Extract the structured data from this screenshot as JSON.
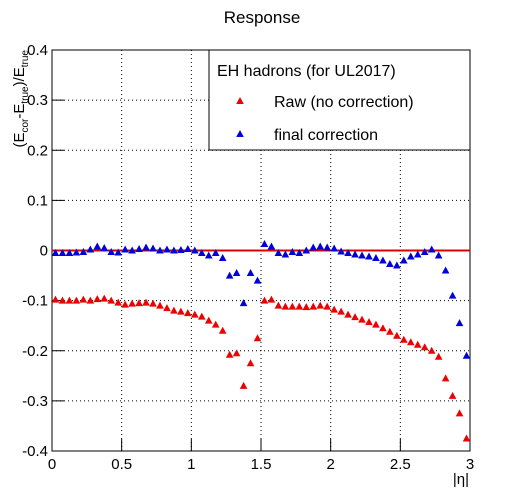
{
  "chart_data": {
    "type": "scatter",
    "title": "Response",
    "xlabel": "|η|",
    "ylabel_parts": [
      "(E",
      "cor",
      "-E",
      "true",
      ")/E",
      "true"
    ],
    "legend_title": "EH hadrons (for UL2017)",
    "xlim": [
      0,
      3
    ],
    "ylim": [
      -0.4,
      0.4
    ],
    "xticks": [
      0,
      0.5,
      1,
      1.5,
      2,
      2.5,
      3
    ],
    "yticks": [
      -0.4,
      -0.3,
      -0.2,
      -0.1,
      0,
      0.1,
      0.2,
      0.3,
      0.4
    ],
    "grid": true,
    "hline": 0,
    "hline_color": "#dd0000",
    "x": [
      0.025,
      0.075,
      0.125,
      0.175,
      0.225,
      0.275,
      0.325,
      0.375,
      0.425,
      0.475,
      0.525,
      0.575,
      0.625,
      0.675,
      0.725,
      0.775,
      0.825,
      0.875,
      0.925,
      0.975,
      1.025,
      1.075,
      1.125,
      1.175,
      1.225,
      1.275,
      1.325,
      1.375,
      1.425,
      1.475,
      1.525,
      1.575,
      1.625,
      1.675,
      1.725,
      1.775,
      1.825,
      1.875,
      1.925,
      1.975,
      2.025,
      2.075,
      2.125,
      2.175,
      2.225,
      2.275,
      2.325,
      2.375,
      2.425,
      2.475,
      2.525,
      2.575,
      2.625,
      2.675,
      2.725,
      2.775,
      2.825,
      2.875,
      2.925,
      2.975
    ],
    "series": [
      {
        "name": "Raw (no correction)",
        "color": "#ee0000",
        "values": [
          -0.098,
          -0.1,
          -0.1,
          -0.1,
          -0.098,
          -0.1,
          -0.097,
          -0.096,
          -0.1,
          -0.104,
          -0.108,
          -0.106,
          -0.105,
          -0.104,
          -0.106,
          -0.11,
          -0.115,
          -0.12,
          -0.122,
          -0.125,
          -0.128,
          -0.132,
          -0.14,
          -0.148,
          -0.16,
          -0.208,
          -0.205,
          -0.27,
          -0.225,
          -0.175,
          -0.1,
          -0.098,
          -0.11,
          -0.112,
          -0.112,
          -0.112,
          -0.113,
          -0.112,
          -0.11,
          -0.112,
          -0.118,
          -0.122,
          -0.128,
          -0.133,
          -0.138,
          -0.143,
          -0.148,
          -0.155,
          -0.162,
          -0.17,
          -0.178,
          -0.183,
          -0.188,
          -0.193,
          -0.2,
          -0.212,
          -0.255,
          -0.29,
          -0.325,
          -0.375
        ]
      },
      {
        "name": "final correction",
        "color": "#0000dd",
        "values": [
          -0.005,
          -0.005,
          -0.005,
          -0.004,
          -0.003,
          0.002,
          0.008,
          0.005,
          -0.003,
          -0.004,
          0.002,
          0,
          0.003,
          0.006,
          0.004,
          0,
          0.002,
          0,
          0.001,
          0.003,
          0,
          -0.005,
          -0.01,
          -0.005,
          -0.015,
          -0.05,
          -0.045,
          -0.105,
          -0.045,
          -0.06,
          0.013,
          0.008,
          -0.005,
          -0.008,
          -0.003,
          -0.005,
          0,
          0.006,
          0.008,
          0.006,
          0.004,
          -0.002,
          -0.005,
          -0.008,
          -0.01,
          -0.012,
          -0.015,
          -0.02,
          -0.027,
          -0.03,
          -0.02,
          -0.012,
          -0.008,
          -0.003,
          0.002,
          -0.01,
          -0.04,
          -0.09,
          -0.145,
          -0.21
        ]
      }
    ]
  }
}
